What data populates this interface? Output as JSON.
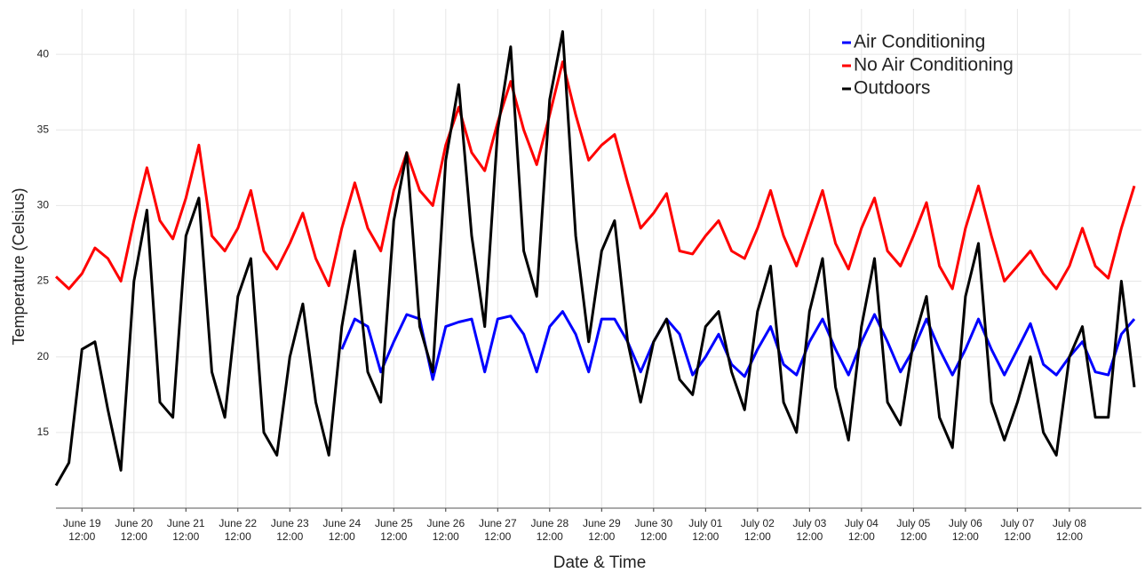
{
  "chart_data": {
    "type": "line",
    "x_label": "Date & Time",
    "y_label": "Temperature (Celsius)",
    "x": [
      "June 19 00:00",
      "June 19 06:00",
      "June 19 12:00",
      "June 19 18:00",
      "June 20 00:00",
      "June 20 06:00",
      "June 20 12:00",
      "June 20 18:00",
      "June 21 00:00",
      "June 21 06:00",
      "June 21 12:00",
      "June 21 18:00",
      "June 22 00:00",
      "June 22 06:00",
      "June 22 12:00",
      "June 22 18:00",
      "June 23 00:00",
      "June 23 06:00",
      "June 23 12:00",
      "June 23 18:00",
      "June 24 00:00",
      "June 24 06:00",
      "June 24 12:00",
      "June 24 18:00",
      "June 25 00:00",
      "June 25 06:00",
      "June 25 12:00",
      "June 25 18:00",
      "June 26 00:00",
      "June 26 06:00",
      "June 26 12:00",
      "June 26 18:00",
      "June 27 00:00",
      "June 27 06:00",
      "June 27 12:00",
      "June 27 18:00",
      "June 28 00:00",
      "June 28 06:00",
      "June 28 12:00",
      "June 28 18:00",
      "June 29 00:00",
      "June 29 06:00",
      "June 29 12:00",
      "June 29 18:00",
      "June 30 00:00",
      "June 30 06:00",
      "June 30 12:00",
      "June 30 18:00",
      "July 01 00:00",
      "July 01 06:00",
      "July 01 12:00",
      "July 01 18:00",
      "July 02 00:00",
      "July 02 06:00",
      "July 02 12:00",
      "July 02 18:00",
      "July 03 00:00",
      "July 03 06:00",
      "July 03 12:00",
      "July 03 18:00",
      "July 04 00:00",
      "July 04 06:00",
      "July 04 12:00",
      "July 04 18:00",
      "July 05 00:00",
      "July 05 06:00",
      "July 05 12:00",
      "July 05 18:00",
      "July 06 00:00",
      "July 06 06:00",
      "July 06 12:00",
      "July 06 18:00",
      "July 07 00:00",
      "July 07 06:00",
      "July 07 12:00",
      "July 07 18:00",
      "July 08 00:00",
      "July 08 06:00",
      "July 08 12:00",
      "July 08 18:00",
      "July 09 00:00",
      "July 09 06:00",
      "July 09 12:00",
      "July 09 18:00"
    ],
    "xticks": [
      {
        "value": "June 19 12:00",
        "label": [
          "June 19",
          "12:00"
        ]
      },
      {
        "value": "June 20 12:00",
        "label": [
          "June 20",
          "12:00"
        ]
      },
      {
        "value": "June 21 12:00",
        "label": [
          "June 21",
          "12:00"
        ]
      },
      {
        "value": "June 22 12:00",
        "label": [
          "June 22",
          "12:00"
        ]
      },
      {
        "value": "June 23 12:00",
        "label": [
          "June 23",
          "12:00"
        ]
      },
      {
        "value": "June 24 12:00",
        "label": [
          "June 24",
          "12:00"
        ]
      },
      {
        "value": "June 25 12:00",
        "label": [
          "June 25",
          "12:00"
        ]
      },
      {
        "value": "June 26 12:00",
        "label": [
          "June 26",
          "12:00"
        ]
      },
      {
        "value": "June 27 12:00",
        "label": [
          "June 27",
          "12:00"
        ]
      },
      {
        "value": "June 28 12:00",
        "label": [
          "June 28",
          "12:00"
        ]
      },
      {
        "value": "June 29 12:00",
        "label": [
          "June 29",
          "12:00"
        ]
      },
      {
        "value": "June 30 12:00",
        "label": [
          "June 30",
          "12:00"
        ]
      },
      {
        "value": "July 01 12:00",
        "label": [
          "July 01",
          "12:00"
        ]
      },
      {
        "value": "July 02 12:00",
        "label": [
          "July 02",
          "12:00"
        ]
      },
      {
        "value": "July 03 12:00",
        "label": [
          "July 03",
          "12:00"
        ]
      },
      {
        "value": "July 04 12:00",
        "label": [
          "July 04",
          "12:00"
        ]
      },
      {
        "value": "July 05 12:00",
        "label": [
          "July 05",
          "12:00"
        ]
      },
      {
        "value": "July 06 12:00",
        "label": [
          "July 06",
          "12:00"
        ]
      },
      {
        "value": "July 07 12:00",
        "label": [
          "July 07",
          "12:00"
        ]
      },
      {
        "value": "July 08 12:00",
        "label": [
          "July 08",
          "12:00"
        ]
      }
    ],
    "ylim": [
      10,
      43
    ],
    "yticks": [
      15,
      20,
      25,
      30,
      35,
      40
    ],
    "grid": true,
    "legend": "top-right",
    "series": [
      {
        "name": "Air Conditioning",
        "color": "#0000ff",
        "values": [
          null,
          null,
          null,
          null,
          null,
          null,
          null,
          null,
          null,
          null,
          null,
          null,
          null,
          null,
          null,
          null,
          null,
          null,
          null,
          null,
          null,
          null,
          20.5,
          22.5,
          22,
          19,
          21,
          22.8,
          22.5,
          18.5,
          22,
          22.3,
          22.5,
          19,
          22.5,
          22.7,
          21.5,
          19,
          22,
          23,
          21.5,
          19,
          22.5,
          22.5,
          21,
          19,
          21,
          22.5,
          21.5,
          18.8,
          20,
          21.5,
          19.5,
          18.7,
          20.5,
          22,
          19.5,
          18.8,
          21,
          22.5,
          20.5,
          18.8,
          21,
          22.8,
          21,
          19,
          20.5,
          22.5,
          20.5,
          18.8,
          20.5,
          22.5,
          20.5,
          18.8,
          20.5,
          22.2,
          19.5,
          18.8,
          20,
          21,
          19,
          18.8,
          21.5,
          22.5
        ]
      },
      {
        "name": "No Air Conditioning",
        "color": "#ff0000",
        "values": [
          25.3,
          24.5,
          25.5,
          27.2,
          26.5,
          25,
          29,
          32.5,
          29,
          27.8,
          30.5,
          34,
          28,
          27,
          28.5,
          31,
          27,
          25.8,
          27.5,
          29.5,
          26.5,
          24.7,
          28.5,
          31.5,
          28.5,
          27,
          31,
          33.5,
          31,
          30,
          34,
          36.5,
          33.5,
          32.3,
          35.5,
          38.2,
          35,
          32.7,
          36,
          39.5,
          36,
          33,
          34,
          34.7,
          31.5,
          28.5,
          29.5,
          30.8,
          27,
          26.8,
          28,
          29,
          27,
          26.5,
          28.5,
          31,
          28,
          26,
          28.5,
          31,
          27.5,
          25.8,
          28.5,
          30.5,
          27,
          26,
          28,
          30.2,
          26,
          24.5,
          28.5,
          31.3,
          28,
          25,
          26,
          27,
          25.5,
          24.5,
          26,
          28.5,
          26,
          25.2,
          28.5,
          31.3
        ]
      },
      {
        "name": "Outdoors",
        "color": "#000000",
        "values": [
          11.5,
          13,
          20.5,
          21,
          16.5,
          12.5,
          25,
          29.7,
          17,
          16,
          28,
          30.5,
          19,
          16,
          24,
          26.5,
          15,
          13.5,
          20,
          23.5,
          17,
          13.5,
          22,
          27,
          19,
          17,
          29,
          33.5,
          22,
          19,
          33,
          38,
          28,
          22,
          35,
          40.5,
          27,
          24,
          37,
          41.5,
          28,
          21,
          27,
          29,
          21,
          17,
          21,
          22.5,
          18.5,
          17.5,
          22,
          23,
          19,
          16.5,
          23,
          26,
          17,
          15,
          23,
          26.5,
          18,
          14.5,
          22,
          26.5,
          17,
          15.5,
          21,
          24,
          16,
          14,
          24,
          27.5,
          17,
          14.5,
          17,
          20,
          15,
          13.5,
          20,
          22,
          16,
          16,
          25,
          18
        ]
      }
    ]
  }
}
